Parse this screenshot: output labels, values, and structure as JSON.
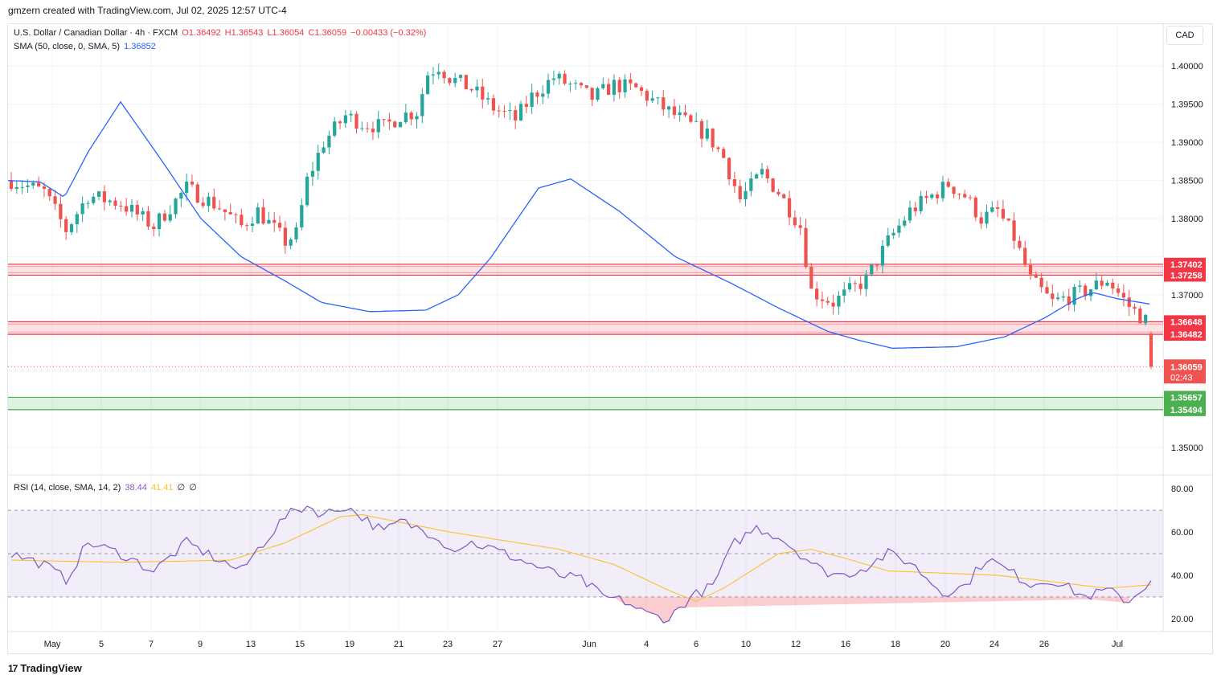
{
  "header": {
    "credit": "gmzern created with TradingView.com, Jul 02, 2025 12:57 UTC-4"
  },
  "symbol": {
    "name": "U.S. Dollar / Canadian Dollar · 4h · FXCM",
    "open": "O1.36492",
    "high": "H1.36543",
    "low": "L1.36054",
    "close": "C1.36059",
    "change": "−0.00433 (−0.32%)"
  },
  "sma_legend": {
    "label": "SMA (50, close, 0, SMA, 5)",
    "value": "1.36852"
  },
  "rsi_legend": {
    "label": "RSI (14, close, SMA, 14, 2)",
    "rsi": "38.44",
    "sma": "41.41",
    "extra1": "∅",
    "extra2": "∅"
  },
  "currency": "CAD",
  "footer": {
    "brand": "TradingView",
    "logo_text": "17"
  },
  "colors": {
    "up": "#26a69a",
    "down": "#ef5350",
    "sma": "#2962ff",
    "rsi": "#7e57c2",
    "rsi_ma": "#fbc02d",
    "resistance": "#f23645",
    "support": "#4caf50",
    "grid": "#f0f3fa"
  },
  "chart_data": [
    {
      "type": "candlestick",
      "title": "U.S. Dollar / Canadian Dollar · 4h · FXCM",
      "x_ticks": [
        "May",
        "5",
        "7",
        "9",
        "13",
        "15",
        "19",
        "21",
        "23",
        "27",
        "Jun",
        "4",
        "6",
        "10",
        "12",
        "16",
        "18",
        "20",
        "24",
        "26",
        "Jul"
      ],
      "y_ticks": [
        "1.40000",
        "1.39500",
        "1.39000",
        "1.38500",
        "1.38000",
        "1.37000",
        "1.35000"
      ],
      "ylim": [
        1.3465,
        1.4055
      ],
      "bars_count": 235,
      "close_path_anchors": [
        [
          0,
          1.385
        ],
        [
          6,
          1.3835
        ],
        [
          10,
          1.3785
        ],
        [
          14,
          1.383
        ],
        [
          20,
          1.382
        ],
        [
          26,
          1.379
        ],
        [
          32,
          1.384
        ],
        [
          38,
          1.3815
        ],
        [
          42,
          1.379
        ],
        [
          45,
          1.381
        ],
        [
          50,
          1.377
        ],
        [
          52,
          1.378
        ],
        [
          54,
          1.385
        ],
        [
          57,
          1.39
        ],
        [
          61,
          1.3935
        ],
        [
          64,
          1.3925
        ],
        [
          68,
          1.392
        ],
        [
          71,
          1.3935
        ],
        [
          74,
          1.394
        ],
        [
          76,
          1.399
        ],
        [
          78,
          1.4
        ],
        [
          80,
          1.3985
        ],
        [
          84,
          1.397
        ],
        [
          88,
          1.3945
        ],
        [
          92,
          1.393
        ],
        [
          95,
          1.396
        ],
        [
          99,
          1.3985
        ],
        [
          102,
          1.3975
        ],
        [
          106,
          1.3958
        ],
        [
          110,
          1.3975
        ],
        [
          114,
          1.397
        ],
        [
          119,
          1.3945
        ],
        [
          124,
          1.3922
        ],
        [
          127,
          1.391
        ],
        [
          130,
          1.388
        ],
        [
          133,
          1.3825
        ],
        [
          137,
          1.386
        ],
        [
          140,
          1.3835
        ],
        [
          144,
          1.379
        ],
        [
          146,
          1.3705
        ],
        [
          150,
          1.369
        ],
        [
          156,
          1.372
        ],
        [
          160,
          1.377
        ],
        [
          164,
          1.381
        ],
        [
          168,
          1.383
        ],
        [
          171,
          1.3845
        ],
        [
          174,
          1.383
        ],
        [
          177,
          1.38
        ],
        [
          180,
          1.381
        ],
        [
          183,
          1.3775
        ],
        [
          186,
          1.372
        ],
        [
          190,
          1.369
        ],
        [
          196,
          1.3705
        ],
        [
          200,
          1.372
        ],
        [
          204,
          1.3685
        ],
        [
          208,
          1.366
        ]
      ],
      "sma": {
        "name": "SMA (50, close, 0, SMA, 5)",
        "anchors_x_to_price": [
          [
            0,
            1.385
          ],
          [
            40,
            1.3848
          ],
          [
            70,
            1.3828
          ],
          [
            100,
            1.3888
          ],
          [
            140,
            1.3953
          ],
          [
            190,
            1.3878
          ],
          [
            240,
            1.38
          ],
          [
            290,
            1.375
          ],
          [
            345,
            1.3718
          ],
          [
            390,
            1.369
          ],
          [
            450,
            1.3678
          ],
          [
            520,
            1.368
          ],
          [
            560,
            1.37
          ],
          [
            600,
            1.3748
          ],
          [
            660,
            1.384
          ],
          [
            700,
            1.3852
          ],
          [
            760,
            1.381
          ],
          [
            830,
            1.375
          ],
          [
            900,
            1.3715
          ],
          [
            960,
            1.3682
          ],
          [
            1020,
            1.3652
          ],
          [
            1060,
            1.364
          ],
          [
            1100,
            1.363
          ],
          [
            1180,
            1.3632
          ],
          [
            1240,
            1.3645
          ],
          [
            1290,
            1.367
          ],
          [
            1330,
            1.3695
          ],
          [
            1350,
            1.3703
          ],
          [
            1380,
            1.3695
          ],
          [
            1420,
            1.3688
          ]
        ],
        "last": 1.36852
      },
      "zones": [
        {
          "kind": "resistance",
          "top": 1.37402,
          "bottom": 1.37258,
          "top_label": "1.37402",
          "bottom_label": "1.37258"
        },
        {
          "kind": "resistance",
          "top": 1.36648,
          "bottom": 1.36482,
          "top_label": "1.36648",
          "bottom_label": "1.36482"
        },
        {
          "kind": "support",
          "top": 1.35657,
          "bottom": 1.35494,
          "top_label": "1.35657",
          "bottom_label": "1.35494"
        }
      ],
      "last_price": {
        "value": 1.36059,
        "label": "1.36059",
        "countdown": "02:43"
      }
    },
    {
      "type": "line",
      "title": "RSI (14, close, SMA, 14, 2)",
      "y_ticks": [
        "80.00",
        "60.00",
        "40.00",
        "20.00"
      ],
      "ylim": [
        14,
        86
      ],
      "bands": {
        "upper": 70,
        "middle": 50,
        "lower": 30
      },
      "rsi_last": 38.44,
      "rsi_ma_last": 41.41,
      "series": [
        {
          "name": "RSI",
          "anchors": [
            [
              0,
              50
            ],
            [
              6,
              45
            ],
            [
              10,
              38
            ],
            [
              14,
              55
            ],
            [
              20,
              50
            ],
            [
              26,
              42
            ],
            [
              32,
              55
            ],
            [
              38,
              47
            ],
            [
              42,
              42
            ],
            [
              45,
              52
            ],
            [
              50,
              67
            ],
            [
              52,
              70
            ],
            [
              54,
              72
            ],
            [
              57,
              68
            ],
            [
              61,
              72
            ],
            [
              64,
              67
            ],
            [
              68,
              60
            ],
            [
              71,
              65
            ],
            [
              74,
              62
            ],
            [
              78,
              58
            ],
            [
              80,
              52
            ],
            [
              84,
              55
            ],
            [
              88,
              52
            ],
            [
              92,
              48
            ],
            [
              96,
              44
            ],
            [
              100,
              40
            ],
            [
              104,
              38
            ],
            [
              108,
              30
            ],
            [
              112,
              28
            ],
            [
              116,
              22
            ],
            [
              120,
              20
            ],
            [
              124,
              30
            ],
            [
              128,
              35
            ],
            [
              132,
              55
            ],
            [
              136,
              62
            ],
            [
              140,
              58
            ],
            [
              144,
              50
            ],
            [
              148,
              42
            ],
            [
              152,
              40
            ],
            [
              156,
              44
            ],
            [
              160,
              50
            ],
            [
              164,
              46
            ],
            [
              170,
              32
            ],
            [
              174,
              35
            ],
            [
              178,
              48
            ],
            [
              182,
              42
            ],
            [
              186,
              36
            ],
            [
              190,
              38
            ],
            [
              196,
              30
            ],
            [
              200,
              33
            ],
            [
              204,
              28
            ],
            [
              208,
              38
            ]
          ]
        },
        {
          "name": "RSI-based MA",
          "anchors": [
            [
              0,
              47
            ],
            [
              20,
              46
            ],
            [
              40,
              47
            ],
            [
              50,
              55
            ],
            [
              60,
              67
            ],
            [
              64,
              68
            ],
            [
              80,
              60
            ],
            [
              100,
              52
            ],
            [
              110,
              45
            ],
            [
              120,
              33
            ],
            [
              125,
              28
            ],
            [
              130,
              34
            ],
            [
              140,
              50
            ],
            [
              146,
              52
            ],
            [
              152,
              48
            ],
            [
              160,
              42
            ],
            [
              180,
              40
            ],
            [
              200,
              34
            ],
            [
              210,
              36
            ]
          ]
        }
      ]
    }
  ]
}
